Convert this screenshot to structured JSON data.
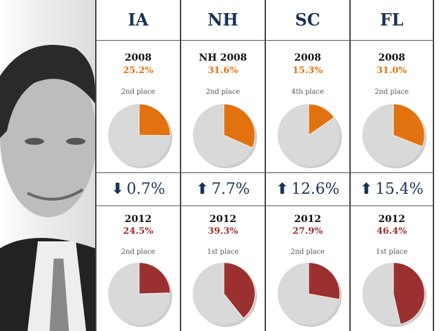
{
  "chart_data": {
    "type": "pie",
    "colors": {
      "slice_2008": "#e2720f",
      "slice_2012": "#9b3030",
      "remainder": "#d9d9d9",
      "state_text": "#1b3358"
    },
    "states": [
      {
        "state": "IA",
        "y2008_label": "2008",
        "y2008_pct": 25.2,
        "y2008_pct_text": "25.2%",
        "y2008_place": "2nd place",
        "change_dir": "down",
        "change_text": "0.7%",
        "y2012_label": "2012",
        "y2012_pct": 24.5,
        "y2012_pct_text": "24.5%",
        "y2012_place": "2nd place"
      },
      {
        "state": "NH",
        "y2008_label": "NH 2008",
        "y2008_pct": 31.6,
        "y2008_pct_text": "31.6%",
        "y2008_place": "2nd place",
        "change_dir": "up",
        "change_text": "7.7%",
        "y2012_label": "2012",
        "y2012_pct": 39.3,
        "y2012_pct_text": "39.3%",
        "y2012_place": "1st place"
      },
      {
        "state": "SC",
        "y2008_label": "2008",
        "y2008_pct": 15.3,
        "y2008_pct_text": "15.3%",
        "y2008_place": "4th place",
        "change_dir": "up",
        "change_text": "12.6%",
        "y2012_label": "2012",
        "y2012_pct": 27.9,
        "y2012_pct_text": "27.9%",
        "y2012_place": "2nd place"
      },
      {
        "state": "FL",
        "y2008_label": "2008",
        "y2008_pct": 31.0,
        "y2008_pct_text": "31.0%",
        "y2008_place": "2nd place",
        "change_dir": "up",
        "change_text": "15.4%",
        "y2012_label": "2012",
        "y2012_pct": 46.4,
        "y2012_pct_text": "46.4%",
        "y2012_place": "1st place"
      }
    ]
  }
}
